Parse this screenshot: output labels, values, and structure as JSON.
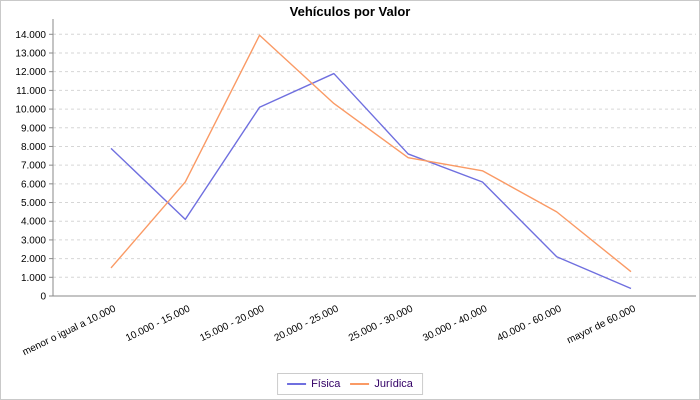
{
  "title": "Vehículos por Valor",
  "legend": {
    "items": [
      {
        "label": "Física",
        "color": "#6f6fdf"
      },
      {
        "label": "Jurídica",
        "color": "#fa9a65"
      }
    ]
  },
  "chart_data": {
    "type": "line",
    "title": "Vehículos por Valor",
    "categories": [
      "menor o igual a 10.000",
      "10.000 - 15.000",
      "15.000 - 20.000",
      "20.000 - 25.000",
      "25.000 - 30.000",
      "30.000 - 40.000",
      "40.000 - 60.000",
      "mayor de 60.000"
    ],
    "series": [
      {
        "name": "Física",
        "color": "#6f6fdf",
        "values": [
          7900,
          4100,
          10100,
          11900,
          7600,
          6100,
          2100,
          400
        ]
      },
      {
        "name": "Jurídica",
        "color": "#fa9a65",
        "values": [
          1500,
          6100,
          13950,
          10300,
          7400,
          6700,
          4500,
          1300
        ]
      }
    ],
    "xlabel": "",
    "ylabel": "",
    "ylim": [
      0,
      14000
    ],
    "ytick_step": 1000,
    "ytick_labels": [
      "0",
      "1.000",
      "2.000",
      "3.000",
      "4.000",
      "5.000",
      "6.000",
      "7.000",
      "8.000",
      "9.000",
      "10.000",
      "11.000",
      "12.000",
      "13.000",
      "14.000"
    ],
    "grid": "horizontal-dashed",
    "legend_position": "bottom",
    "x_label_rotation_deg": -26
  },
  "colors": {
    "axis": "#8a8a8a",
    "gridline": "#d6d6d6",
    "tick_text": "#000000",
    "legend_text": "#330066",
    "frame_border": "#c9c9c9",
    "background": "#ffffff"
  }
}
